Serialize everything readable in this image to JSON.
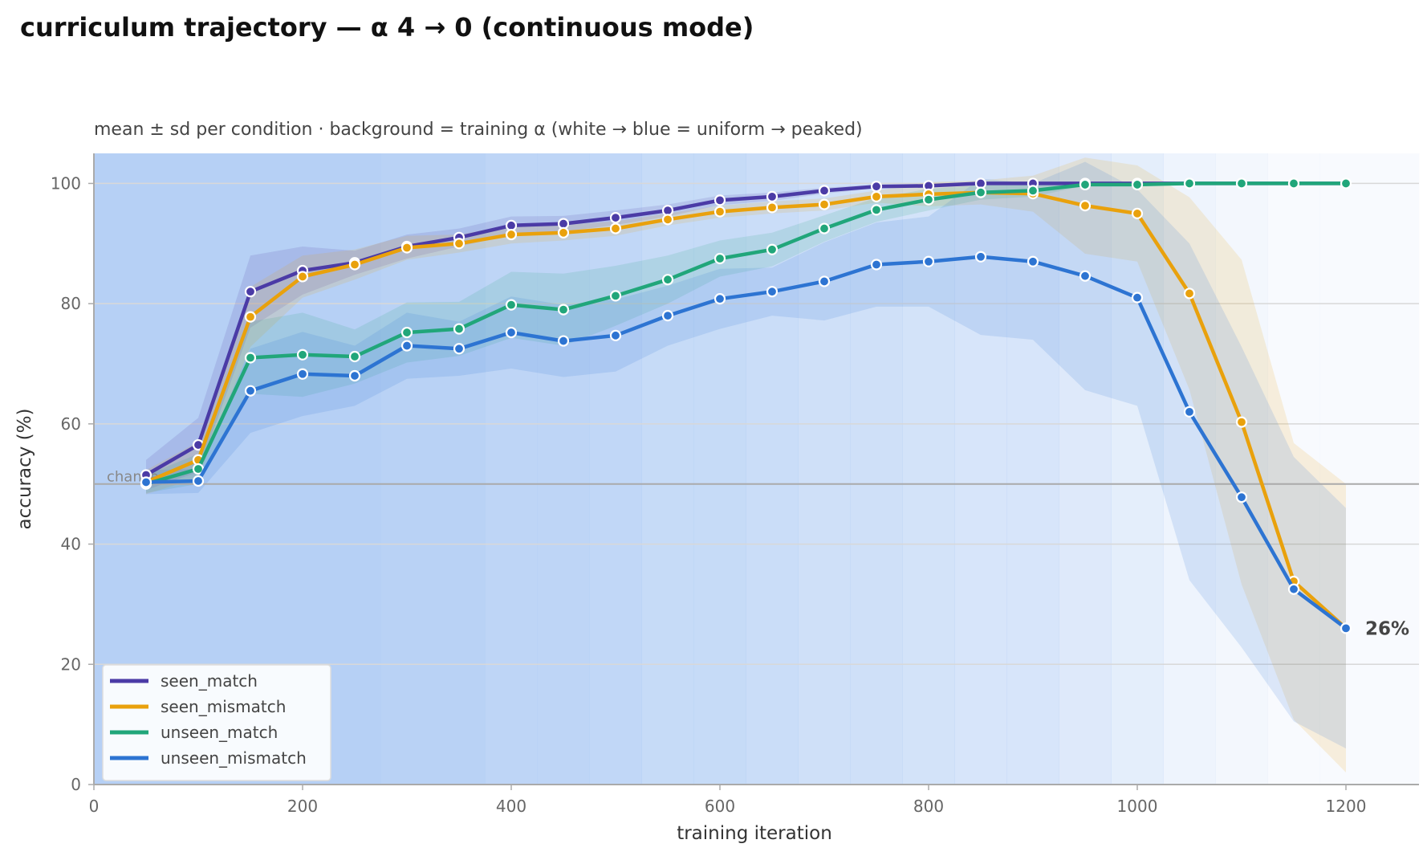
{
  "chart_data": {
    "type": "line",
    "title": "curriculum trajectory — α 4 → 0 (continuous mode)",
    "subtitle": "mean ± sd per condition · background = training α (white → blue = uniform → peaked)",
    "xlabel": "training iteration",
    "ylabel": "accuracy (%)",
    "xlim": [
      0,
      1270
    ],
    "ylim": [
      0,
      105
    ],
    "xticks": [
      0,
      200,
      400,
      600,
      800,
      1000,
      1200
    ],
    "yticks": [
      0,
      20,
      40,
      60,
      80,
      100
    ],
    "grid": "horizontal",
    "legend_position": "bottom-left",
    "chance_label": "chance",
    "chance_value": 50,
    "end_label": "26%",
    "end_label_value": 26,
    "x": [
      50,
      100,
      150,
      200,
      250,
      300,
      350,
      400,
      450,
      500,
      550,
      600,
      650,
      700,
      750,
      800,
      850,
      900,
      950,
      1000,
      1050,
      1100,
      1150,
      1200
    ],
    "background_alpha": [
      4.0,
      4.0,
      4.0,
      4.0,
      4.0,
      3.8,
      3.8,
      3.5,
      3.5,
      3.3,
      3.0,
      3.0,
      2.8,
      2.5,
      2.5,
      2.2,
      2.0,
      2.0,
      1.6,
      1.2,
      0.6,
      0.3,
      0.0,
      0.0
    ],
    "background_color": "#b6d0f5",
    "series": [
      {
        "name": "seen_match",
        "color": "#4b3ba6",
        "values": [
          51.5,
          56.5,
          82,
          85.5,
          86.8,
          89.5,
          91,
          93,
          93.3,
          94.3,
          95.5,
          97.2,
          97.8,
          98.8,
          99.5,
          99.6,
          100,
          100,
          100,
          100,
          100,
          100,
          100,
          100
        ],
        "sd": [
          2.5,
          4.5,
          6,
          4,
          2,
          2,
          1.5,
          1.5,
          1.3,
          1.2,
          1,
          0.8,
          0.7,
          0.5,
          0.3,
          0.3,
          0,
          0,
          0,
          0,
          0,
          0,
          0,
          0
        ]
      },
      {
        "name": "seen_mismatch",
        "color": "#e9a10c",
        "values": [
          50.3,
          54,
          77.8,
          84.5,
          86.5,
          89.3,
          90,
          91.5,
          91.8,
          92.5,
          94,
          95.3,
          96,
          96.5,
          97.8,
          98.2,
          98.5,
          98.3,
          96.3,
          95,
          81.7,
          60.3,
          33.8,
          26
        ],
        "sd": [
          2,
          3,
          5,
          3.5,
          2.5,
          2,
          1.5,
          1.5,
          1.3,
          1.2,
          1,
          1,
          1,
          1,
          1,
          2,
          2,
          3,
          8,
          8,
          16,
          27,
          23,
          24
        ]
      },
      {
        "name": "unseen_match",
        "color": "#21a67a",
        "values": [
          50,
          52.5,
          71,
          71.5,
          71.2,
          75.2,
          75.8,
          79.8,
          79,
          81.3,
          84,
          87.5,
          89,
          92.5,
          95.6,
          97.3,
          98.5,
          98.8,
          99.8,
          99.8,
          100,
          100,
          100,
          100
        ],
        "sd": [
          1.5,
          2.5,
          6,
          7,
          4.5,
          5,
          4.5,
          5.5,
          6,
          5,
          4,
          3,
          2.8,
          2.2,
          2,
          1.8,
          1.2,
          1,
          0.2,
          0.2,
          0,
          0,
          0,
          0
        ]
      },
      {
        "name": "unseen_mismatch",
        "color": "#2d74d2",
        "values": [
          50.3,
          50.5,
          65.5,
          68.3,
          68,
          73,
          72.5,
          75.2,
          73.8,
          74.7,
          78,
          80.8,
          82,
          83.7,
          86.5,
          87,
          87.8,
          87,
          84.6,
          81,
          62,
          47.8,
          32.5,
          26
        ],
        "sd": [
          2,
          2,
          7,
          7,
          5,
          5.5,
          4.5,
          6,
          6,
          6,
          5,
          5,
          4,
          6.5,
          7,
          7.5,
          13,
          13,
          19,
          18,
          28,
          25,
          22,
          20
        ]
      }
    ]
  }
}
